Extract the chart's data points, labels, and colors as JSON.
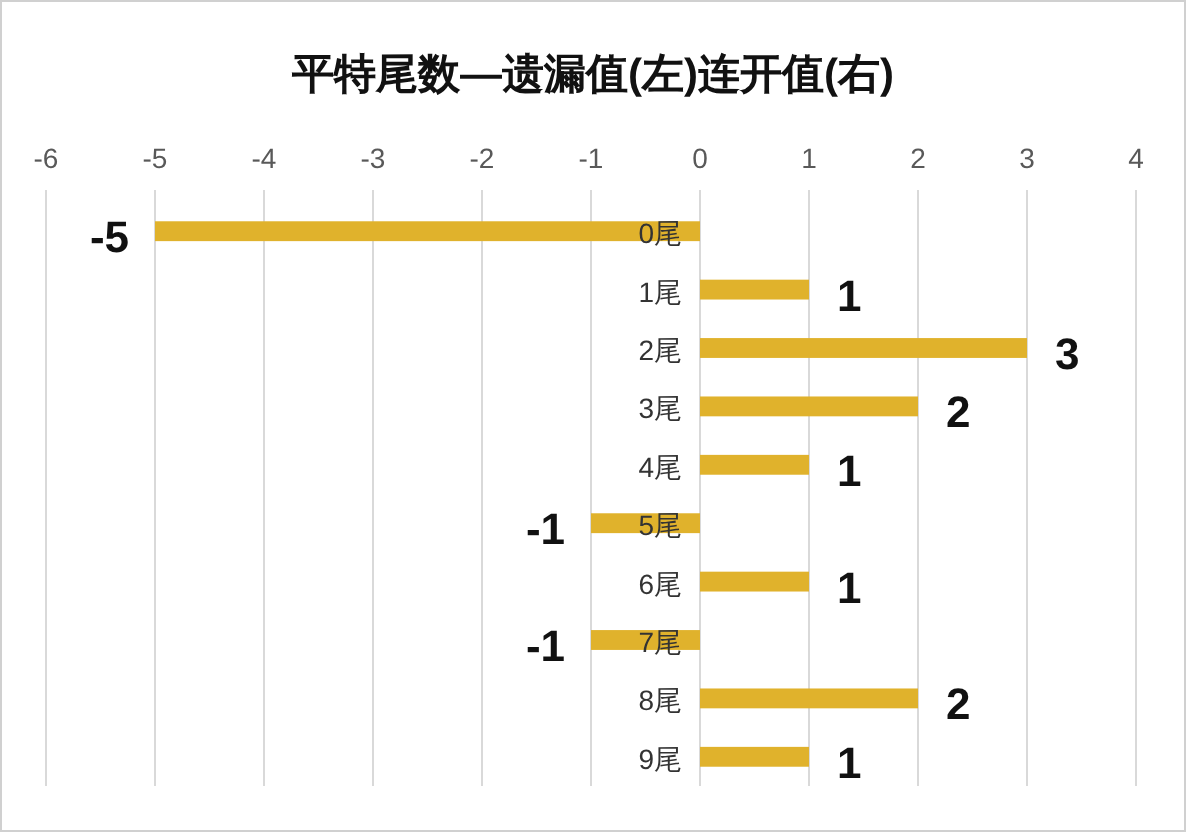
{
  "chart_data": {
    "type": "bar",
    "orientation": "horizontal",
    "title": "平特尾数—遗漏值(左)连开值(右)",
    "categories": [
      "0尾",
      "1尾",
      "2尾",
      "3尾",
      "4尾",
      "5尾",
      "6尾",
      "7尾",
      "8尾",
      "9尾"
    ],
    "values": [
      -5,
      1,
      3,
      2,
      1,
      -1,
      1,
      -1,
      2,
      1
    ],
    "color": "#e0b22c",
    "xlim": [
      -6,
      4
    ],
    "xticks": [
      -6,
      -5,
      -4,
      -3,
      -2,
      -1,
      0,
      1,
      2,
      3,
      4
    ],
    "grid": "x",
    "data_labels": true
  }
}
